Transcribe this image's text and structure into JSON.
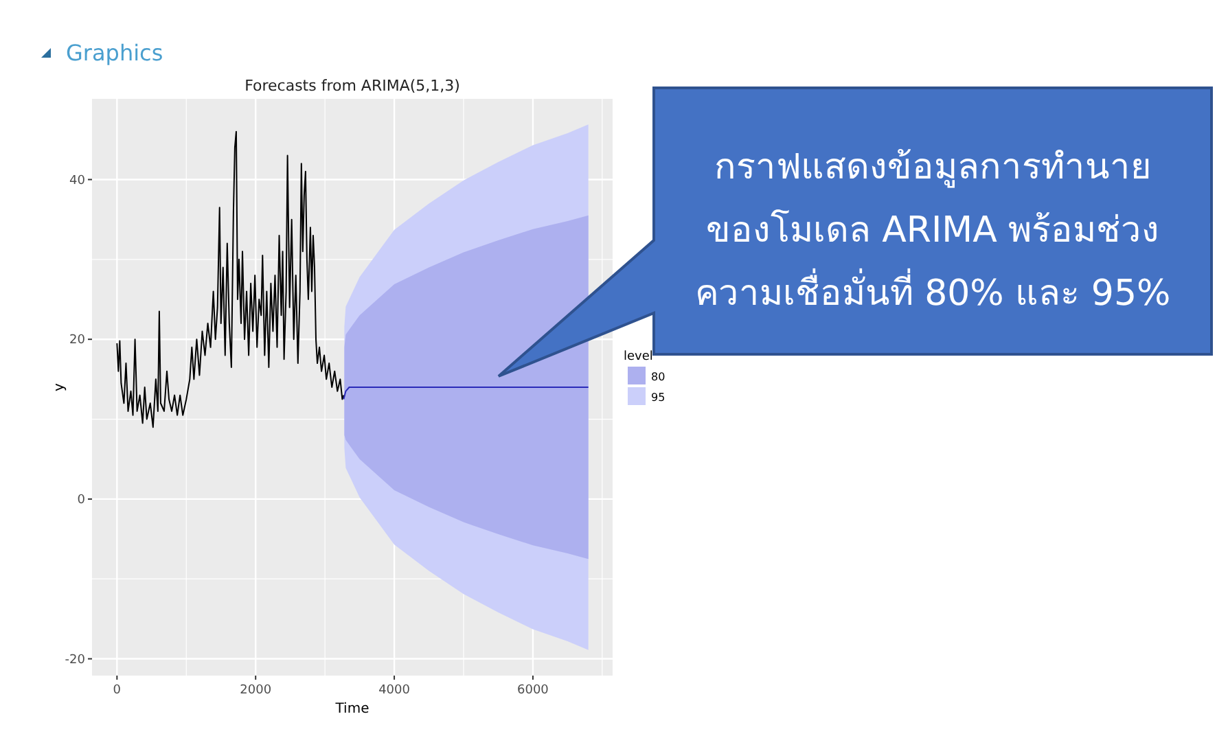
{
  "chart_data": {
    "type": "line",
    "title": "Forecasts from ARIMA(5,1,3)",
    "xlabel": "Time",
    "ylabel": "y",
    "legend_title": "level",
    "legend": "right",
    "grid": true,
    "xlim": [
      -360,
      7150
    ],
    "ylim": [
      -22.1,
      50.1
    ],
    "xticks": [
      0,
      2000,
      4000,
      6000,
      {
        "value": 1000,
        "label": null
      },
      {
        "value": 3000,
        "label": null
      },
      {
        "value": 5000,
        "label": null
      },
      {
        "value": 7000,
        "label": null
      }
    ],
    "yticks": [
      -20,
      0,
      20,
      40,
      {
        "value": -10,
        "label": null
      },
      {
        "value": 10,
        "label": null
      },
      {
        "value": 30,
        "label": null
      }
    ],
    "annotations": [
      "Graphics",
      "กราฟแสดงข้อมูลการทำนาย\nของโมเดล ARIMA พร้อมช่วง\nความเชื่อมั่นที่ 80% และ 95%"
    ],
    "series": [
      {
        "type": "line",
        "color": "#000000",
        "x": [
          0,
          20,
          40,
          60,
          100,
          130,
          160,
          200,
          230,
          260,
          290,
          330,
          370,
          400,
          430,
          480,
          520,
          560,
          590,
          610,
          630,
          680,
          720,
          750,
          790,
          830,
          870,
          910,
          950,
          1000,
          1050,
          1080,
          1110,
          1150,
          1190,
          1230,
          1270,
          1310,
          1350,
          1390,
          1420,
          1450,
          1480,
          1500,
          1530,
          1560,
          1590,
          1620,
          1650,
          1680,
          1700,
          1720,
          1740,
          1760,
          1790,
          1810,
          1840,
          1870,
          1900,
          1930,
          1960,
          1990,
          2020,
          2050,
          2080,
          2100,
          2130,
          2160,
          2190,
          2220,
          2250,
          2280,
          2310,
          2340,
          2370,
          2390,
          2410,
          2440,
          2460,
          2490,
          2520,
          2550,
          2580,
          2610,
          2640,
          2660,
          2680,
          2700,
          2720,
          2740,
          2760,
          2790,
          2810,
          2830,
          2850,
          2870,
          2890,
          2920,
          2950,
          2990,
          3020,
          3060,
          3100,
          3140,
          3180,
          3220,
          3250,
          3270
        ],
        "values": [
          19.5,
          16,
          19.8,
          14.5,
          12,
          17,
          11,
          13.5,
          10.5,
          20,
          11,
          13,
          9.5,
          14,
          10,
          12,
          9,
          15,
          11,
          23.5,
          12,
          11,
          16,
          12.5,
          11,
          13,
          10.5,
          13,
          10.5,
          12.5,
          15,
          19,
          15,
          20,
          15.5,
          21,
          18,
          22,
          19,
          26,
          20,
          24,
          36.5,
          22,
          29,
          18,
          32,
          22,
          16.5,
          36,
          44,
          46,
          25,
          30,
          22,
          31,
          20,
          26,
          18,
          27,
          21,
          28,
          19,
          25,
          23,
          30.5,
          18,
          26,
          16.5,
          27,
          21,
          28,
          19,
          33,
          23,
          31,
          17.5,
          26,
          43,
          24,
          35,
          20,
          28,
          17,
          26,
          42,
          31,
          38,
          41,
          30,
          25,
          34,
          26,
          33,
          29,
          20,
          17,
          19,
          16,
          18,
          15,
          17,
          14,
          16,
          13.5,
          15,
          12.5,
          13
        ]
      },
      {
        "type": "line",
        "color": "#2a2ab8",
        "x": [
          3270,
          3300,
          3350,
          3500,
          4000,
          4500,
          5000,
          5500,
          6000,
          6500,
          6800
        ],
        "values": [
          12.5,
          13.5,
          14,
          14,
          14,
          14,
          14,
          14,
          14,
          14,
          14
        ]
      },
      {
        "type": "line",
        "name": "80",
        "color": "#adb0ef",
        "x": [
          3280,
          3300,
          3500,
          4000,
          4500,
          5000,
          5500,
          6000,
          6500,
          6800
        ],
        "values": [
          null,
          null,
          null,
          null,
          null,
          null,
          null,
          null,
          null,
          null
        ],
        "lower": [
          8,
          7.4,
          5,
          1.1,
          -1,
          -2.9,
          -4.4,
          -5.8,
          -6.8,
          -7.5
        ],
        "upper": [
          19,
          20.6,
          23,
          26.9,
          29,
          30.9,
          32.4,
          33.8,
          34.8,
          35.5
        ]
      },
      {
        "type": "line",
        "name": "95",
        "color": "#cbcffa",
        "x": [
          3280,
          3300,
          3500,
          4000,
          4500,
          5000,
          5500,
          6000,
          6500,
          6800
        ],
        "values": [
          null,
          null,
          null,
          null,
          null,
          null,
          null,
          null,
          null,
          null
        ],
        "lower": [
          6.4,
          3.9,
          0.2,
          -5.7,
          -9,
          -11.9,
          -14.2,
          -16.3,
          -17.8,
          -18.9
        ],
        "upper": [
          21.6,
          24.1,
          27.8,
          33.7,
          37,
          39.9,
          42.2,
          44.3,
          45.8,
          46.9
        ]
      }
    ]
  }
}
